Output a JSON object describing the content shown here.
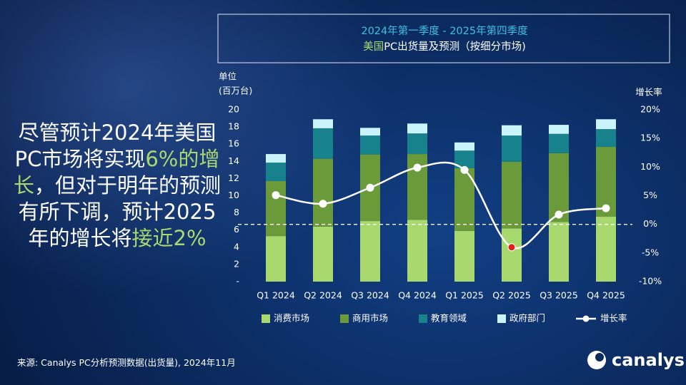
{
  "slide": {
    "headline": [
      "尽管预计2024年美国PC市场将实现",
      "6%的增长",
      "，但对于明年的预测有所下调，预计2025年的增长将",
      "接近2%"
    ],
    "source": "来源: Canalys PC分析预测数据(出货量), 2024年11月",
    "logo": "canalys"
  },
  "chart_data": {
    "type": "bar",
    "stacked": true,
    "title": "2024年第一季度 -  2025年第四季度",
    "subtitle": [
      "美国",
      "PC出货量及预测（按细分市场)"
    ],
    "y_label": [
      "单位",
      "(百万台)"
    ],
    "y2_label": "增长率",
    "categories": [
      "Q1 2024",
      "Q2 2024",
      "Q3 2024",
      "Q4 2024",
      "Q1 2025",
      "Q2 2025",
      "Q3 2025",
      "Q4 2025"
    ],
    "series": [
      {
        "name": "消费市场",
        "color": "#a9d86e",
        "values": [
          5.3,
          6.4,
          7.05,
          7.2,
          5.9,
          6.2,
          6.95,
          7.55
        ]
      },
      {
        "name": "商用市场",
        "color": "#6b9a3b",
        "values": [
          6.4,
          7.9,
          7.75,
          7.65,
          7.3,
          7.75,
          8.0,
          8.15
        ]
      },
      {
        "name": "教育领域",
        "color": "#17818c",
        "values": [
          2.15,
          3.55,
          2.2,
          2.4,
          2.05,
          3.05,
          2.25,
          2.05
        ]
      },
      {
        "name": "政府部门",
        "color": "#c9f4fb",
        "values": [
          1.0,
          1.05,
          0.9,
          1.15,
          0.95,
          1.2,
          1.05,
          1.15
        ]
      },
      {
        "name": "增长率",
        "type": "line",
        "axis": "y2",
        "color": "#ffffff",
        "negative_color": "#e0201b",
        "values": [
          5.1,
          3.6,
          6.4,
          9.9,
          9.5,
          -4.0,
          1.7,
          2.8
        ]
      }
    ],
    "ylim": [
      0,
      20
    ],
    "yticks": [
      {
        "value": 0,
        "label": "-"
      },
      2,
      4,
      6,
      8,
      10,
      12,
      14,
      16,
      18,
      20
    ],
    "y2lim": [
      -10,
      20
    ],
    "y2ticks": [
      {
        "value": -10,
        "label": "-10%"
      },
      {
        "value": -5,
        "label": "-5%"
      },
      {
        "value": 0,
        "label": "0%"
      },
      {
        "value": 5,
        "label": "5%"
      },
      {
        "value": 10,
        "label": "10%"
      },
      {
        "value": 15,
        "label": "15%"
      },
      {
        "value": 20,
        "label": "20%"
      }
    ],
    "zero_line_on": "y2"
  }
}
